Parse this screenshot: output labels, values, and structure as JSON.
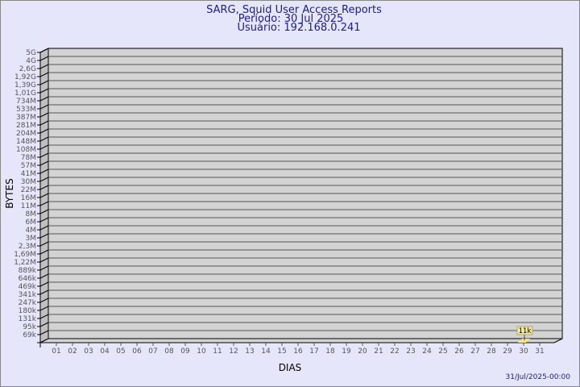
{
  "chart_data": {
    "type": "bar",
    "title": "SARG, Squid User Access Reports",
    "subtitle": [
      "Período: 30 Jul 2025",
      "Usuário: 192.168.0.241"
    ],
    "xlabel": "DIAS",
    "ylabel": "BYTES",
    "categories": [
      "01",
      "02",
      "03",
      "04",
      "05",
      "06",
      "07",
      "08",
      "09",
      "10",
      "11",
      "12",
      "13",
      "14",
      "15",
      "16",
      "17",
      "18",
      "19",
      "20",
      "21",
      "22",
      "23",
      "24",
      "25",
      "26",
      "27",
      "28",
      "29",
      "30",
      "31"
    ],
    "y_tick_labels": [
      "5G",
      "4G",
      "2,6G",
      "1,92G",
      "1,39G",
      "1,01G",
      "734M",
      "533M",
      "387M",
      "281M",
      "204M",
      "148M",
      "108M",
      "78M",
      "57M",
      "41M",
      "30M",
      "22M",
      "16M",
      "11M",
      "8M",
      "6M",
      "4M",
      "3M",
      "2,3M",
      "1,69M",
      "1,22M",
      "889k",
      "646k",
      "469k",
      "341k",
      "247k",
      "180k",
      "131k",
      "95k",
      "69k"
    ],
    "y_scale": "log",
    "grid": true,
    "points": [
      {
        "category": "30",
        "value": 11000,
        "label": "11k"
      }
    ],
    "colors": {
      "background": "#e6e6fa",
      "plot": "#d3d3d3",
      "side": "#c0c0c0",
      "bar": "#f5e08a",
      "label_box": "#f0e8a8",
      "text": "#1c1c8c"
    }
  },
  "footer": {
    "timestamp": "31/Jul/2025-00:00"
  }
}
